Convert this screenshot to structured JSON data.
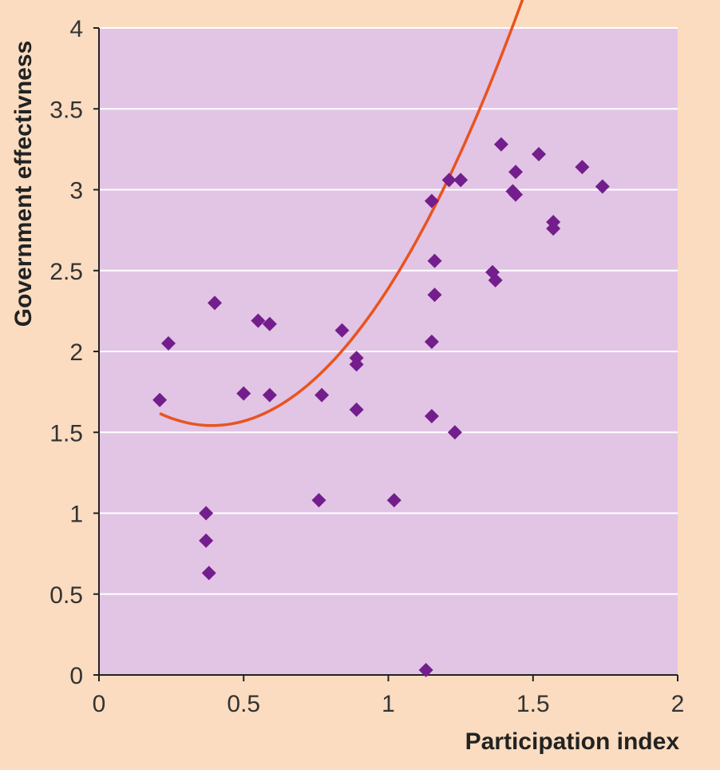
{
  "chart_data": {
    "type": "scatter",
    "title": "",
    "xlabel": "Participation index",
    "ylabel": "Government effectivness",
    "xlim": [
      0,
      2
    ],
    "ylim": [
      0,
      4
    ],
    "x_ticks": [
      "0",
      "0.5",
      "1",
      "1.5",
      "2"
    ],
    "y_ticks": [
      "0",
      "0.5",
      "1",
      "1.5",
      "2",
      "2.5",
      "3",
      "3.5",
      "4"
    ],
    "grid": "horizontal",
    "colors": {
      "background": "#fbdcc0",
      "plot_area": "#e2c4e5",
      "points": "#731e8c",
      "trend": "#e8541e",
      "gridline": "#ffffff"
    },
    "series": [
      {
        "points": [
          [
            0.21,
            1.7
          ],
          [
            0.24,
            2.05
          ],
          [
            0.37,
            1.0
          ],
          [
            0.37,
            0.83
          ],
          [
            0.38,
            0.63
          ],
          [
            0.4,
            2.3
          ],
          [
            0.5,
            1.74
          ],
          [
            0.55,
            2.19
          ],
          [
            0.59,
            2.17
          ],
          [
            0.59,
            1.73
          ],
          [
            0.76,
            1.08
          ],
          [
            0.77,
            1.73
          ],
          [
            0.84,
            2.13
          ],
          [
            0.89,
            1.96
          ],
          [
            0.89,
            1.92
          ],
          [
            0.89,
            1.64
          ],
          [
            1.02,
            1.08
          ],
          [
            1.13,
            0.03
          ],
          [
            1.15,
            2.93
          ],
          [
            1.16,
            2.56
          ],
          [
            1.16,
            2.35
          ],
          [
            1.15,
            2.06
          ],
          [
            1.15,
            1.6
          ],
          [
            1.21,
            3.06
          ],
          [
            1.23,
            1.5
          ],
          [
            1.25,
            3.06
          ],
          [
            1.36,
            2.49
          ],
          [
            1.37,
            2.44
          ],
          [
            1.39,
            3.28
          ],
          [
            1.43,
            2.99
          ],
          [
            1.44,
            2.97
          ],
          [
            1.44,
            3.11
          ],
          [
            1.52,
            3.22
          ],
          [
            1.57,
            2.8
          ],
          [
            1.57,
            2.76
          ],
          [
            1.67,
            3.14
          ],
          [
            1.74,
            3.02
          ]
        ]
      }
    ],
    "trendline": {
      "type": "polynomial-2",
      "x_range": [
        0.21,
        1.72
      ],
      "coefficients": [
        1.891,
        -1.787,
        2.287
      ]
    }
  }
}
